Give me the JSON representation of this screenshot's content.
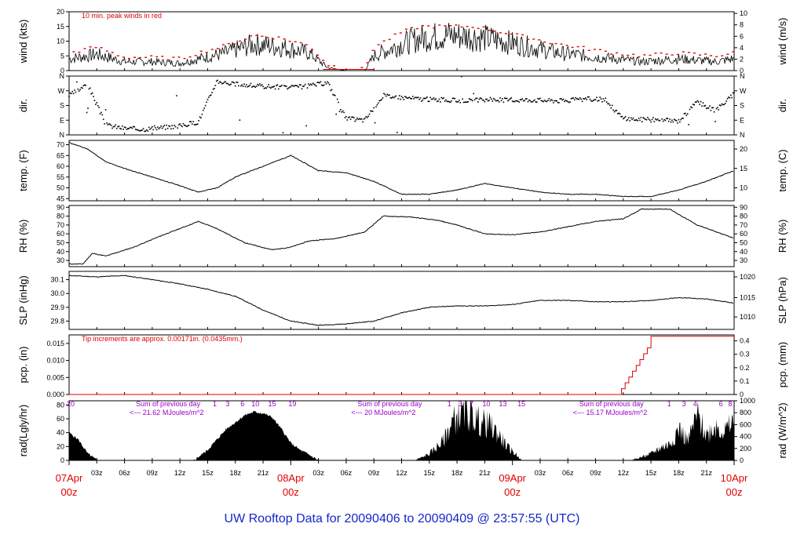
{
  "title": "UW Rooftop Data for 20090406  to  20090409 @ 23:57:55  (UTC)",
  "x_axis": {
    "range_hours": [
      0,
      72
    ],
    "ticks": [
      {
        "h": 3,
        "label": "03z"
      },
      {
        "h": 6,
        "label": "06z"
      },
      {
        "h": 9,
        "label": "09z"
      },
      {
        "h": 12,
        "label": "12z"
      },
      {
        "h": 15,
        "label": "15z"
      },
      {
        "h": 18,
        "label": "18z"
      },
      {
        "h": 21,
        "label": "21z"
      },
      {
        "h": 27,
        "label": "03z"
      },
      {
        "h": 30,
        "label": "06z"
      },
      {
        "h": 33,
        "label": "09z"
      },
      {
        "h": 36,
        "label": "12z"
      },
      {
        "h": 39,
        "label": "15z"
      },
      {
        "h": 42,
        "label": "18z"
      },
      {
        "h": 45,
        "label": "21z"
      },
      {
        "h": 51,
        "label": "03z"
      },
      {
        "h": 54,
        "label": "06z"
      },
      {
        "h": 57,
        "label": "09z"
      },
      {
        "h": 60,
        "label": "12z"
      },
      {
        "h": 63,
        "label": "15z"
      },
      {
        "h": 66,
        "label": "18z"
      },
      {
        "h": 69,
        "label": "21z"
      }
    ],
    "day_labels": [
      {
        "h": 0,
        "date": "07Apr",
        "time": "00z"
      },
      {
        "h": 24,
        "date": "08Apr",
        "time": "00z"
      },
      {
        "h": 48,
        "date": "09Apr",
        "time": "00z"
      },
      {
        "h": 72,
        "date": "10Apr",
        "time": "00z"
      }
    ]
  },
  "chart_data": [
    {
      "type": "line",
      "name_key": "wind",
      "ylabel_left": "wind (kts)",
      "ylabel_right": "wind (m/s)",
      "ylim": [
        0,
        20
      ],
      "yticks_left": [
        "0",
        "5",
        "10",
        "15",
        "20"
      ],
      "yticks_left_values": [
        0,
        5,
        10,
        15,
        20
      ],
      "yticks_right": [
        "0",
        "2",
        "4",
        "6",
        "8",
        "10"
      ],
      "yticks_right_values": [
        0,
        3.89,
        7.78,
        11.66,
        15.55,
        19.44
      ],
      "annotation": "10 min. peak winds in red",
      "x": [
        0,
        3,
        6,
        9,
        12,
        14,
        17,
        20,
        23,
        26,
        28,
        30,
        32,
        33,
        36,
        38,
        41,
        44,
        47,
        50,
        53,
        56,
        59,
        62,
        64,
        66,
        68,
        70,
        72
      ],
      "y": [
        4,
        5.5,
        3,
        3,
        2.5,
        4,
        6,
        9,
        8,
        6,
        1,
        0,
        0,
        5,
        9,
        11,
        12,
        11.5,
        10,
        8,
        6,
        5,
        4,
        3,
        3.5,
        4,
        3.5,
        3,
        4
      ],
      "peak_y": [
        6,
        8,
        4.5,
        4.5,
        4,
        6,
        8.5,
        12,
        11,
        8.5,
        2,
        0.5,
        0.5,
        8,
        13,
        15,
        15,
        15,
        13,
        11,
        9,
        7.5,
        6,
        5,
        5.5,
        6,
        5.5,
        5,
        6
      ]
    },
    {
      "type": "scatter",
      "name_key": "dir",
      "ylabel_left": "dir.",
      "ylabel_right": "dir.",
      "ylim": [
        0,
        360
      ],
      "yticks_left": [
        "N",
        "E",
        "S",
        "W",
        "N"
      ],
      "yticks_left_values": [
        0,
        90,
        180,
        270,
        360
      ],
      "yticks_right": [
        "N",
        "E",
        "S",
        "W",
        "N"
      ],
      "yticks_right_values": [
        0,
        90,
        180,
        270,
        360
      ],
      "x": [
        0,
        2,
        4,
        6,
        8,
        10,
        12,
        14,
        16,
        18,
        20,
        22,
        24,
        26,
        28,
        30,
        32,
        34,
        36,
        38,
        40,
        42,
        44,
        46,
        48,
        50,
        52,
        54,
        56,
        58,
        60,
        62,
        64,
        66,
        68,
        70,
        72
      ],
      "y": [
        240,
        310,
        60,
        40,
        35,
        45,
        55,
        80,
        330,
        310,
        300,
        295,
        290,
        300,
        320,
        100,
        90,
        240,
        230,
        220,
        215,
        210,
        212,
        215,
        212,
        215,
        210,
        210,
        220,
        215,
        100,
        95,
        90,
        85,
        200,
        150,
        250
      ]
    },
    {
      "type": "line",
      "name_key": "temp",
      "ylabel_left": "temp. (F)",
      "ylabel_right": "temp. (C)",
      "ylim": [
        44,
        72
      ],
      "yticks_left": [
        "45",
        "50",
        "55",
        "60",
        "65",
        "70"
      ],
      "yticks_left_values": [
        45,
        50,
        55,
        60,
        65,
        70
      ],
      "yticks_right": [
        "10",
        "15",
        "20"
      ],
      "yticks_right_values": [
        50,
        59,
        68
      ],
      "x": [
        0,
        2,
        4,
        6,
        9,
        12,
        14,
        16,
        18,
        21,
        24,
        27,
        30,
        33,
        36,
        39,
        42,
        45,
        48,
        51,
        54,
        57,
        60,
        63,
        66,
        69,
        72
      ],
      "y": [
        71,
        68,
        62,
        59,
        55,
        51,
        48,
        50,
        55,
        60,
        65,
        58,
        57,
        53,
        47,
        47,
        49,
        52,
        50,
        48,
        47,
        47,
        46,
        46,
        49,
        53,
        58
      ]
    },
    {
      "type": "line",
      "name_key": "rh",
      "ylabel_left": "RH (%)",
      "ylabel_right": "RH (%)",
      "ylim": [
        23,
        92
      ],
      "yticks_left": [
        "30",
        "40",
        "50",
        "60",
        "70",
        "80",
        "90"
      ],
      "yticks_left_values": [
        30,
        40,
        50,
        60,
        70,
        80,
        90
      ],
      "yticks_right": [
        "30",
        "40",
        "50",
        "60",
        "70",
        "80",
        "90"
      ],
      "yticks_right_values": [
        30,
        40,
        50,
        60,
        70,
        80,
        90
      ],
      "x": [
        0,
        1.5,
        2.5,
        4,
        7,
        10,
        14,
        16,
        19,
        22,
        24,
        26,
        29,
        32,
        34,
        37,
        40,
        42,
        45,
        48,
        51,
        54,
        57,
        60,
        62,
        65,
        68,
        72
      ],
      "y": [
        26,
        26,
        38,
        35,
        45,
        58,
        74,
        66,
        50,
        42,
        45,
        52,
        55,
        62,
        80,
        79,
        75,
        70,
        60,
        59,
        62,
        68,
        74,
        77,
        88,
        88,
        70,
        55
      ]
    },
    {
      "type": "line",
      "name_key": "slp",
      "ylabel_left": "SLP (inHg)",
      "ylabel_right": "SLP (hPa)",
      "ylim": [
        29.74,
        30.16
      ],
      "yticks_left": [
        "29.8",
        "29.9",
        "30.0",
        "30.1"
      ],
      "yticks_left_values": [
        29.8,
        29.9,
        30.0,
        30.1
      ],
      "yticks_right": [
        "1010",
        "1015",
        "1020"
      ],
      "yticks_right_values": [
        29.83,
        29.97,
        30.12
      ],
      "x": [
        0,
        3,
        6,
        9,
        12,
        15,
        18,
        21,
        24,
        27,
        30,
        33,
        36,
        39,
        42,
        45,
        48,
        51,
        54,
        57,
        60,
        63,
        66,
        69,
        72
      ],
      "y": [
        30.13,
        30.12,
        30.13,
        30.1,
        30.07,
        30.03,
        29.98,
        29.88,
        29.8,
        29.77,
        29.78,
        29.8,
        29.86,
        29.9,
        29.91,
        29.91,
        29.92,
        29.95,
        29.95,
        29.94,
        29.94,
        29.95,
        29.97,
        29.96,
        29.93
      ]
    },
    {
      "type": "line",
      "name_key": "pcp",
      "ylabel_left": "pcp. (in)",
      "ylabel_right": "pcp. (mm)",
      "ylim": [
        0,
        0.0175
      ],
      "yticks_left": [
        "0.000",
        "0.005",
        "0.010",
        "0.015"
      ],
      "yticks_left_values": [
        0,
        0.005,
        0.01,
        0.015
      ],
      "yticks_right": [
        "0",
        "0.1",
        "0.2",
        "0.3",
        "0.4"
      ],
      "yticks_right_values": [
        0,
        0.00394,
        0.00787,
        0.01181,
        0.01575
      ],
      "annotation": "Tip increments are approx. 0.00171in. (0.0435mm.)",
      "x": [
        0,
        59.5,
        59.8,
        60.2,
        60.6,
        61.0,
        61.4,
        61.8,
        62.2,
        62.6,
        63.0,
        72
      ],
      "y": [
        0,
        0,
        0.00171,
        0.00342,
        0.00513,
        0.00684,
        0.00855,
        0.01026,
        0.01197,
        0.01368,
        0.0171,
        0.0171
      ]
    },
    {
      "type": "area",
      "name_key": "rad",
      "ylabel_left": "rad(Lgly/hr)",
      "ylabel_right": "rad (W/m^2)",
      "ylim": [
        0,
        86
      ],
      "yticks_left": [
        "0",
        "20",
        "40",
        "60",
        "80"
      ],
      "yticks_left_values": [
        0,
        20,
        40,
        60,
        80
      ],
      "yticks_right": [
        "0",
        "200",
        "400",
        "600",
        "800",
        "1000"
      ],
      "yticks_right_values": [
        0,
        17.2,
        34.4,
        51.6,
        68.8,
        86
      ],
      "x": [
        0,
        1,
        2,
        3,
        13.5,
        15,
        17,
        19,
        20,
        21,
        22,
        23,
        24,
        25,
        26,
        27,
        37.5,
        39,
        40.5,
        41.5,
        42.5,
        43.5,
        44.5,
        45.5,
        46.5,
        47.5,
        48.5,
        49,
        61,
        63,
        64,
        65,
        66,
        67,
        68,
        69,
        70,
        71,
        72
      ],
      "y": [
        40,
        30,
        10,
        0,
        0,
        15,
        45,
        65,
        70,
        68,
        62,
        45,
        25,
        15,
        8,
        0,
        0,
        10,
        30,
        60,
        75,
        70,
        60,
        55,
        40,
        20,
        8,
        0,
        0,
        10,
        20,
        25,
        50,
        30,
        70,
        40,
        55,
        45,
        60
      ]
    },
    {
      "type": "table",
      "name_key": "rad_sums",
      "items": [
        {
          "h": 4,
          "line1": "Sum of previous day",
          "line2": "<--- 21.62 MJoules/m^2"
        },
        {
          "h": 28,
          "line1": "Sum of previous day",
          "line2": "<--- 20 MJoules/m^2"
        },
        {
          "h": 52,
          "line1": "Sum of previous day",
          "line2": "<--- 15.17 MJoules/m^2"
        }
      ],
      "hour_labels": [
        {
          "h": 0,
          "label": "20"
        },
        {
          "h": 15.6,
          "label": "1"
        },
        {
          "h": 17.0,
          "label": "3"
        },
        {
          "h": 18.6,
          "label": "6"
        },
        {
          "h": 20.0,
          "label": "10"
        },
        {
          "h": 21.8,
          "label": "15"
        },
        {
          "h": 24.0,
          "label": "19"
        },
        {
          "h": 41.0,
          "label": "1"
        },
        {
          "h": 42.2,
          "label": "3"
        },
        {
          "h": 43.4,
          "label": "7"
        },
        {
          "h": 45.0,
          "label": "10"
        },
        {
          "h": 46.8,
          "label": "13"
        },
        {
          "h": 48.8,
          "label": "15"
        },
        {
          "h": 64.8,
          "label": "1"
        },
        {
          "h": 66.4,
          "label": "3"
        },
        {
          "h": 67.6,
          "label": "4"
        },
        {
          "h": 70.4,
          "label": "6"
        },
        {
          "h": 71.4,
          "label": "8"
        }
      ]
    }
  ]
}
